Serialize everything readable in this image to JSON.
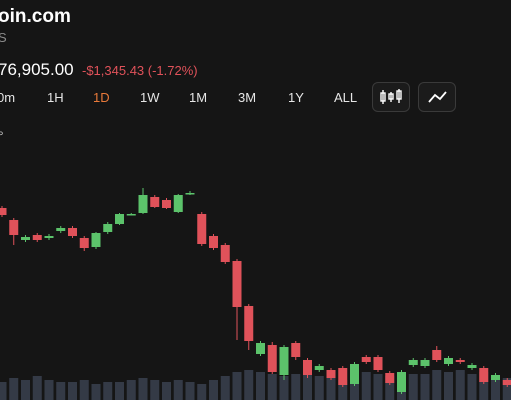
{
  "header": {
    "title": "oin.com",
    "subtitle": "S"
  },
  "price": {
    "value": "76,905.00",
    "change": "-$1,345.43 (-1.72%)"
  },
  "chart_label": "°",
  "timeframes": {
    "options": [
      "0m",
      "1H",
      "1D",
      "1W",
      "1M",
      "3M",
      "1Y",
      "ALL"
    ],
    "active": "1D"
  },
  "chart_data": {
    "type": "candlestick",
    "up_color": "#5cc36b",
    "down_color": "#e0525a",
    "volume_color": "#343a46",
    "ylim": [
      0,
      400
    ],
    "open": [
      192,
      180,
      160,
      165,
      162,
      169,
      172,
      162,
      153,
      168,
      176,
      186,
      187,
      203,
      200,
      188,
      206,
      186,
      164,
      155,
      139,
      94,
      46,
      55,
      25,
      57,
      40,
      30,
      30,
      32,
      16,
      43,
      43,
      27,
      8,
      35,
      34,
      50,
      36,
      40,
      32,
      32,
      20,
      20
    ],
    "high": [
      194,
      182,
      165,
      167,
      166,
      174,
      174,
      164,
      168,
      178,
      187,
      187,
      212,
      205,
      202,
      206,
      209,
      188,
      166,
      157,
      141,
      96,
      59,
      58,
      55,
      59,
      42,
      36,
      32,
      34,
      38,
      45,
      45,
      29,
      30,
      42,
      42,
      54,
      44,
      42,
      37,
      34,
      27,
      22
    ],
    "low": [
      183,
      155,
      158,
      158,
      160,
      167,
      162,
      149,
      151,
      166,
      175,
      185,
      186,
      192,
      191,
      187,
      205,
      154,
      150,
      136,
      60,
      50,
      44,
      26,
      20,
      40,
      22,
      28,
      20,
      13,
      14,
      36,
      28,
      15,
      6,
      33,
      32,
      38,
      34,
      36,
      30,
      16,
      18,
      13
    ],
    "close": [
      185,
      165,
      163,
      160,
      164,
      172,
      164,
      152,
      167,
      176,
      186,
      186,
      205,
      193,
      192,
      205,
      207,
      156,
      152,
      138,
      93,
      59,
      57,
      28,
      53,
      43,
      25,
      34,
      22,
      15,
      36,
      38,
      30,
      17,
      28,
      40,
      40,
      40,
      42,
      38,
      35,
      18,
      25,
      15
    ],
    "volume": [
      18,
      22,
      20,
      24,
      20,
      18,
      18,
      20,
      16,
      18,
      18,
      20,
      22,
      20,
      18,
      20,
      18,
      16,
      20,
      24,
      28,
      30,
      28,
      26,
      24,
      26,
      26,
      24,
      22,
      20,
      24,
      28,
      26,
      24,
      28,
      26,
      26,
      30,
      28,
      30,
      26,
      28,
      24,
      22
    ]
  }
}
